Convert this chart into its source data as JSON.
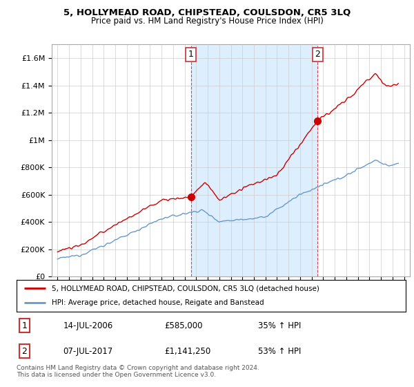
{
  "title": "5, HOLLYMEAD ROAD, CHIPSTEAD, COULSDON, CR5 3LQ",
  "subtitle": "Price paid vs. HM Land Registry's House Price Index (HPI)",
  "legend_line1": "5, HOLLYMEAD ROAD, CHIPSTEAD, COULSDON, CR5 3LQ (detached house)",
  "legend_line2": "HPI: Average price, detached house, Reigate and Banstead",
  "sale1_date": "14-JUL-2006",
  "sale1_price": "£585,000",
  "sale1_hpi": "35% ↑ HPI",
  "sale2_date": "07-JUL-2017",
  "sale2_price": "£1,141,250",
  "sale2_hpi": "53% ↑ HPI",
  "footer": "Contains HM Land Registry data © Crown copyright and database right 2024.\nThis data is licensed under the Open Government Licence v3.0.",
  "red_color": "#cc0000",
  "blue_color": "#6699cc",
  "shade_color": "#ddeeff",
  "marker1_x": 2006.54,
  "marker1_y": 585000,
  "marker2_x": 2017.52,
  "marker2_y": 1141250,
  "ylim": [
    0,
    1700000
  ],
  "xlim_left": 1994.5,
  "xlim_right": 2025.5,
  "yticks": [
    0,
    200000,
    400000,
    600000,
    800000,
    1000000,
    1200000,
    1400000,
    1600000
  ],
  "ytick_labels": [
    "£0",
    "£200K",
    "£400K",
    "£600K",
    "£800K",
    "£1M",
    "£1.2M",
    "£1.4M",
    "£1.6M"
  ]
}
